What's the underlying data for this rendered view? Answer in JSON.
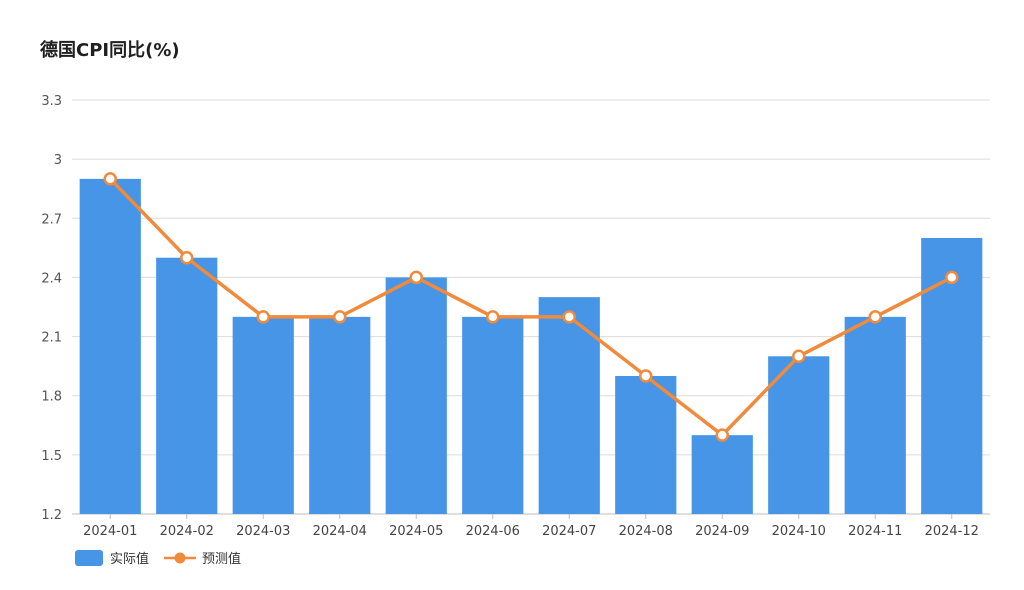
{
  "chart_data": {
    "type": "bar",
    "title": "德国CPI同比(%)",
    "categories": [
      "2024-01",
      "2024-02",
      "2024-03",
      "2024-04",
      "2024-05",
      "2024-06",
      "2024-07",
      "2024-08",
      "2024-09",
      "2024-10",
      "2024-11",
      "2024-12"
    ],
    "series": [
      {
        "name": "实际值",
        "type": "bar",
        "color": "#4695e6",
        "values": [
          2.9,
          2.5,
          2.2,
          2.2,
          2.4,
          2.2,
          2.3,
          1.9,
          1.6,
          2.0,
          2.2,
          2.6
        ]
      },
      {
        "name": "预测值",
        "type": "line",
        "color": "#f08a3c",
        "values": [
          2.9,
          2.5,
          2.2,
          2.2,
          2.4,
          2.2,
          2.2,
          1.9,
          1.6,
          2.0,
          2.2,
          2.4
        ]
      }
    ],
    "ylim": [
      1.2,
      3.3
    ],
    "yticks": [
      "1.2",
      "1.5",
      "1.8",
      "2.1",
      "2.4",
      "2.7",
      "3",
      "3.3"
    ],
    "grid": true,
    "legend": "bottom-left"
  }
}
